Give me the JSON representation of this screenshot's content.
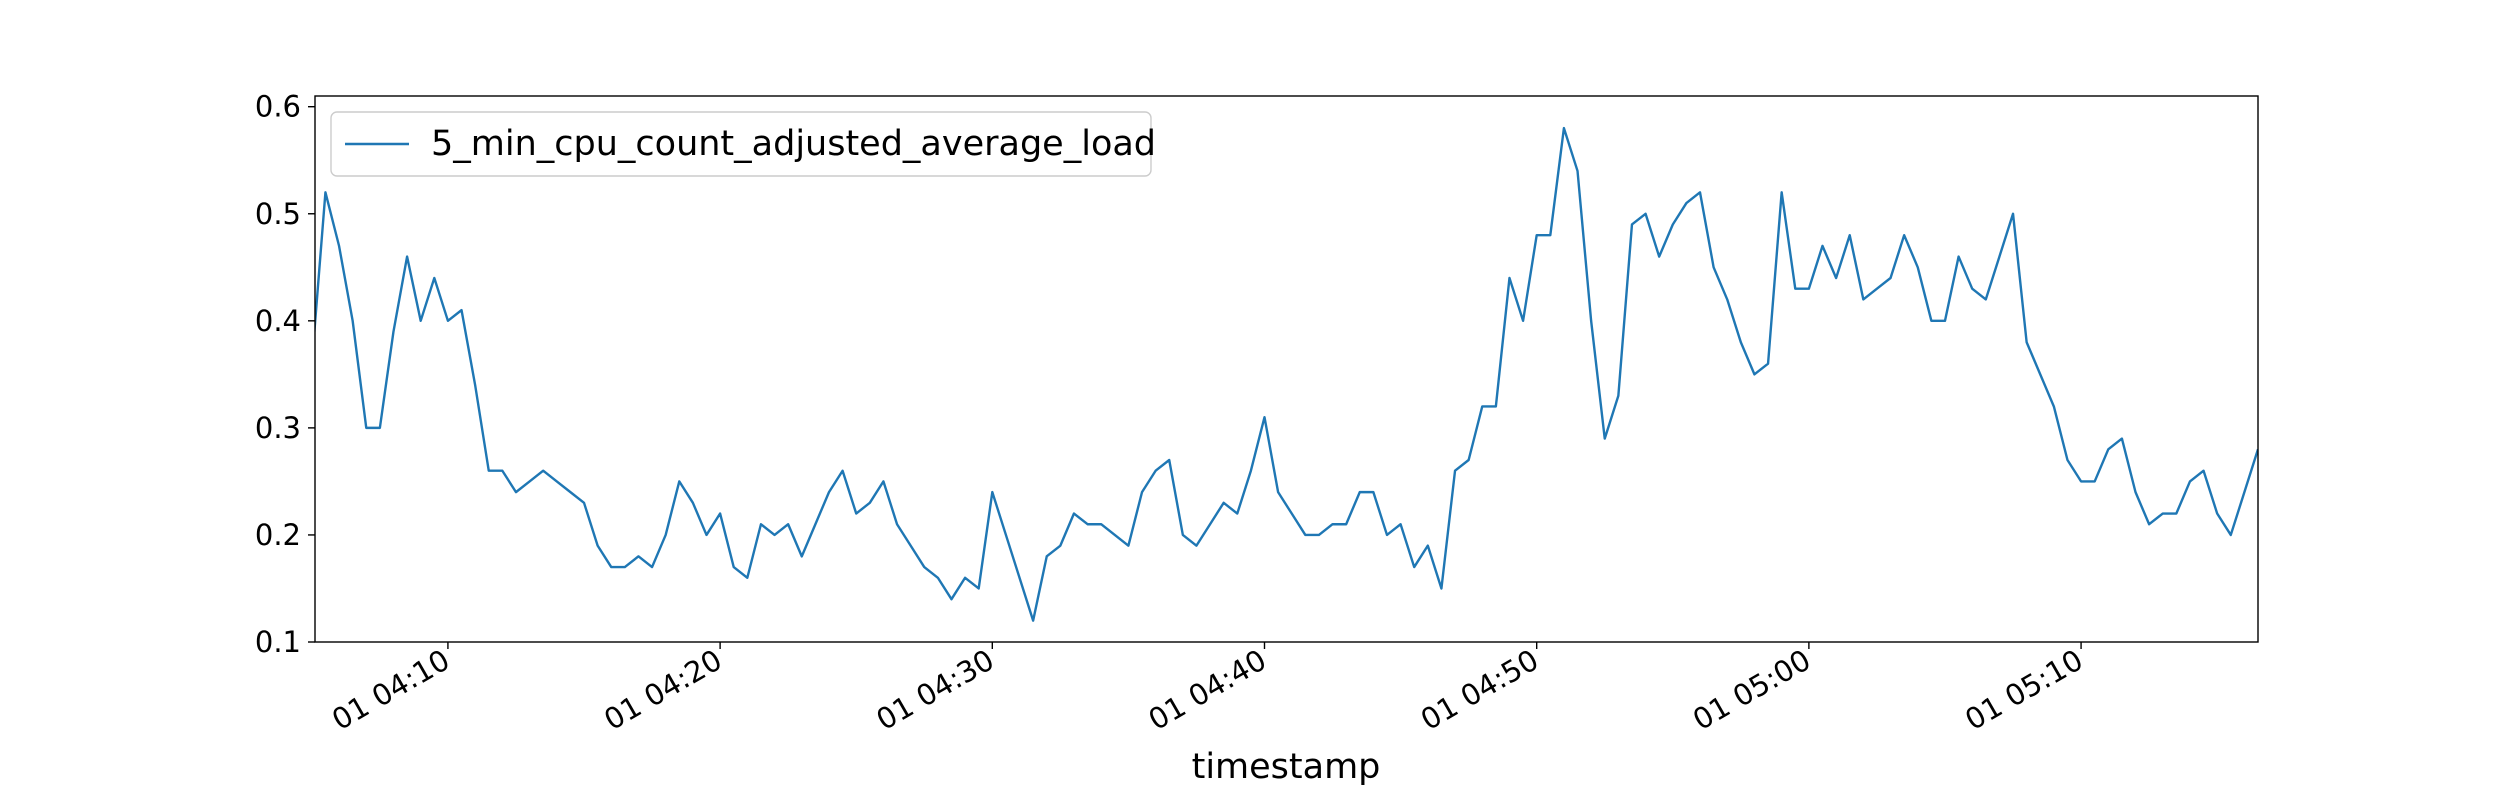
{
  "chart_data": {
    "type": "line",
    "xlabel": "timestamp",
    "x": [
      "01 04:05:00",
      "01 04:05:30",
      "01 04:06:00",
      "01 04:06:30",
      "01 04:07:00",
      "01 04:07:30",
      "01 04:08:00",
      "01 04:08:30",
      "01 04:09:00",
      "01 04:09:30",
      "01 04:10:00",
      "01 04:10:30",
      "01 04:11:00",
      "01 04:11:30",
      "01 04:12:00",
      "01 04:12:30",
      "01 04:13:00",
      "01 04:13:30",
      "01 04:14:00",
      "01 04:14:30",
      "01 04:15:00",
      "01 04:15:30",
      "01 04:16:00",
      "01 04:16:30",
      "01 04:17:00",
      "01 04:17:30",
      "01 04:18:00",
      "01 04:18:30",
      "01 04:19:00",
      "01 04:19:30",
      "01 04:20:00",
      "01 04:20:30",
      "01 04:21:00",
      "01 04:21:30",
      "01 04:22:00",
      "01 04:22:30",
      "01 04:23:00",
      "01 04:23:30",
      "01 04:24:00",
      "01 04:24:30",
      "01 04:25:00",
      "01 04:25:30",
      "01 04:26:00",
      "01 04:26:30",
      "01 04:27:00",
      "01 04:27:30",
      "01 04:28:00",
      "01 04:28:30",
      "01 04:29:00",
      "01 04:29:30",
      "01 04:30:00",
      "01 04:30:30",
      "01 04:31:00",
      "01 04:31:30",
      "01 04:32:00",
      "01 04:32:30",
      "01 04:33:00",
      "01 04:33:30",
      "01 04:34:00",
      "01 04:34:30",
      "01 04:35:00",
      "01 04:35:30",
      "01 04:36:00",
      "01 04:36:30",
      "01 04:37:00",
      "01 04:37:30",
      "01 04:38:00",
      "01 04:38:30",
      "01 04:39:00",
      "01 04:39:30",
      "01 04:40:00",
      "01 04:40:30",
      "01 04:41:00",
      "01 04:41:30",
      "01 04:42:00",
      "01 04:42:30",
      "01 04:43:00",
      "01 04:43:30",
      "01 04:44:00",
      "01 04:44:30",
      "01 04:45:00",
      "01 04:45:30",
      "01 04:46:00",
      "01 04:46:30",
      "01 04:47:00",
      "01 04:47:30",
      "01 04:48:00",
      "01 04:48:30",
      "01 04:49:00",
      "01 04:49:30",
      "01 04:50:00",
      "01 04:50:30",
      "01 04:51:00",
      "01 04:51:30",
      "01 04:52:00",
      "01 04:52:30",
      "01 04:53:00",
      "01 04:53:30",
      "01 04:54:00",
      "01 04:54:30",
      "01 04:55:00",
      "01 04:55:30",
      "01 04:56:00",
      "01 04:56:30",
      "01 04:57:00",
      "01 04:57:30",
      "01 04:58:00",
      "01 04:58:30",
      "01 04:59:00",
      "01 04:59:30",
      "01 05:00:00",
      "01 05:00:30",
      "01 05:01:00",
      "01 05:01:30",
      "01 05:02:00",
      "01 05:02:30",
      "01 05:03:00",
      "01 05:03:30",
      "01 05:04:00",
      "01 05:04:30",
      "01 05:05:00",
      "01 05:05:30",
      "01 05:06:00",
      "01 05:06:30",
      "01 05:07:00",
      "01 05:07:30",
      "01 05:08:00",
      "01 05:08:30",
      "01 05:09:00",
      "01 05:09:30",
      "01 05:10:00",
      "01 05:10:30",
      "01 05:11:00",
      "01 05:11:30",
      "01 05:12:00",
      "01 05:12:30",
      "01 05:13:00",
      "01 05:13:30",
      "01 05:14:00",
      "01 05:14:30",
      "01 05:15:00",
      "01 05:15:30",
      "01 05:16:00",
      "01 05:16:30"
    ],
    "series": [
      {
        "name": "5_min_cpu_count_adjusted_average_load",
        "color": "#1f77b4",
        "values": [
          0.36,
          0.52,
          0.47,
          0.4,
          0.3,
          0.3,
          0.39,
          0.46,
          0.4,
          0.44,
          0.4,
          0.41,
          0.34,
          0.26,
          0.26,
          0.24,
          0.25,
          0.26,
          0.25,
          0.24,
          0.23,
          0.19,
          0.17,
          0.17,
          0.18,
          0.17,
          0.2,
          0.25,
          0.23,
          0.2,
          0.22,
          0.17,
          0.16,
          0.21,
          0.2,
          0.21,
          0.18,
          0.21,
          0.24,
          0.26,
          0.22,
          0.23,
          0.25,
          0.21,
          0.19,
          0.17,
          0.16,
          0.14,
          0.16,
          0.15,
          0.24,
          0.2,
          0.16,
          0.12,
          0.18,
          0.19,
          0.22,
          0.21,
          0.21,
          0.2,
          0.19,
          0.24,
          0.26,
          0.27,
          0.2,
          0.19,
          0.21,
          0.23,
          0.22,
          0.26,
          0.31,
          0.24,
          0.22,
          0.2,
          0.2,
          0.21,
          0.21,
          0.24,
          0.24,
          0.2,
          0.21,
          0.17,
          0.19,
          0.15,
          0.26,
          0.27,
          0.32,
          0.32,
          0.44,
          0.4,
          0.48,
          0.48,
          0.58,
          0.54,
          0.4,
          0.29,
          0.33,
          0.49,
          0.5,
          0.46,
          0.49,
          0.51,
          0.52,
          0.45,
          0.42,
          0.38,
          0.35,
          0.36,
          0.52,
          0.43,
          0.43,
          0.47,
          0.44,
          0.48,
          0.42,
          0.43,
          0.44,
          0.48,
          0.45,
          0.4,
          0.4,
          0.46,
          0.43,
          0.42,
          0.46,
          0.5,
          0.38,
          0.35,
          0.32,
          0.27,
          0.25,
          0.25,
          0.28,
          0.29,
          0.24,
          0.21,
          0.22,
          0.22,
          0.25,
          0.26,
          0.22,
          0.2,
          0.24,
          0.28
        ]
      }
    ],
    "xlim": [
      "01 04:05:07",
      "01 05:16:30"
    ],
    "xticks": [
      "01 04:10",
      "01 04:20",
      "01 04:30",
      "01 04:40",
      "01 04:50",
      "01 05:00",
      "01 05:10"
    ],
    "ylim": [
      0.1,
      0.61
    ],
    "yticks": [
      0.1,
      0.2,
      0.3,
      0.4,
      0.5,
      0.6
    ],
    "grid": false,
    "legend": "upper left"
  }
}
